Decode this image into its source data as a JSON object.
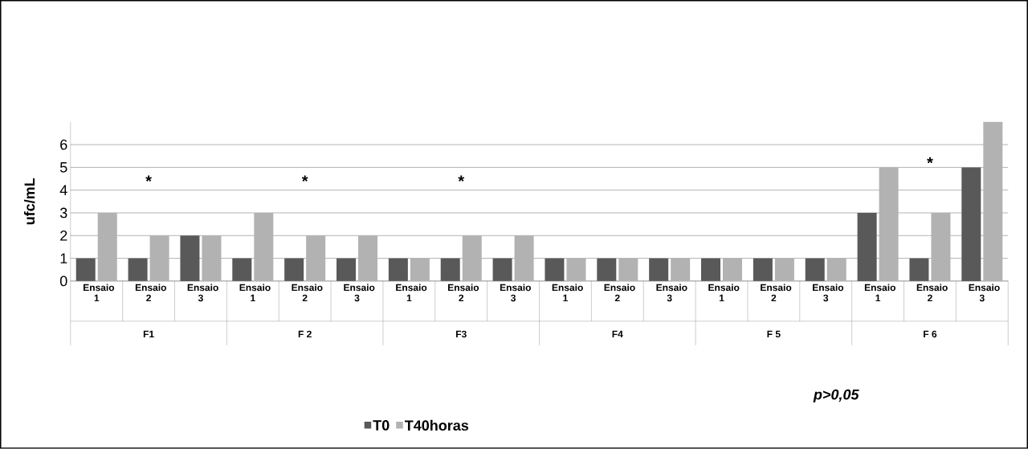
{
  "chart_data": {
    "type": "bar",
    "ylabel": "ufc/mL",
    "categories": [
      "Ensaio 1",
      "Ensaio 2",
      "Ensaio 3",
      "Ensaio 1",
      "Ensaio 2",
      "Ensaio 3",
      "Ensaio 1",
      "Ensaio 2",
      "Ensaio 3",
      "Ensaio 1",
      "Ensaio 2",
      "Ensaio 3",
      "Ensaio 1",
      "Ensaio 2",
      "Ensaio 3",
      "Ensaio 1",
      "Ensaio 2",
      "Ensaio 3"
    ],
    "series": [
      {
        "name": "T0",
        "color": "#595959",
        "values": [
          1,
          1,
          2,
          1,
          1,
          1,
          1,
          1,
          1,
          1,
          1,
          1,
          1,
          1,
          1,
          3,
          1,
          5
        ]
      },
      {
        "name": "T40horas",
        "color": "#b2b2b2",
        "values": [
          3,
          2,
          2,
          3,
          2,
          2,
          1,
          2,
          2,
          1,
          1,
          1,
          1,
          1,
          1,
          5,
          3,
          7
        ]
      }
    ],
    "ylim": [
      0,
      7
    ],
    "yticks": [
      0,
      1,
      2,
      3,
      4,
      5,
      6
    ],
    "grid": "y",
    "legend": "bottom",
    "annotations": [
      "F1",
      "F 2",
      "F3",
      "F4",
      "F 5",
      "F 6",
      "*",
      "*",
      "*",
      "*",
      "p>0,05"
    ]
  }
}
